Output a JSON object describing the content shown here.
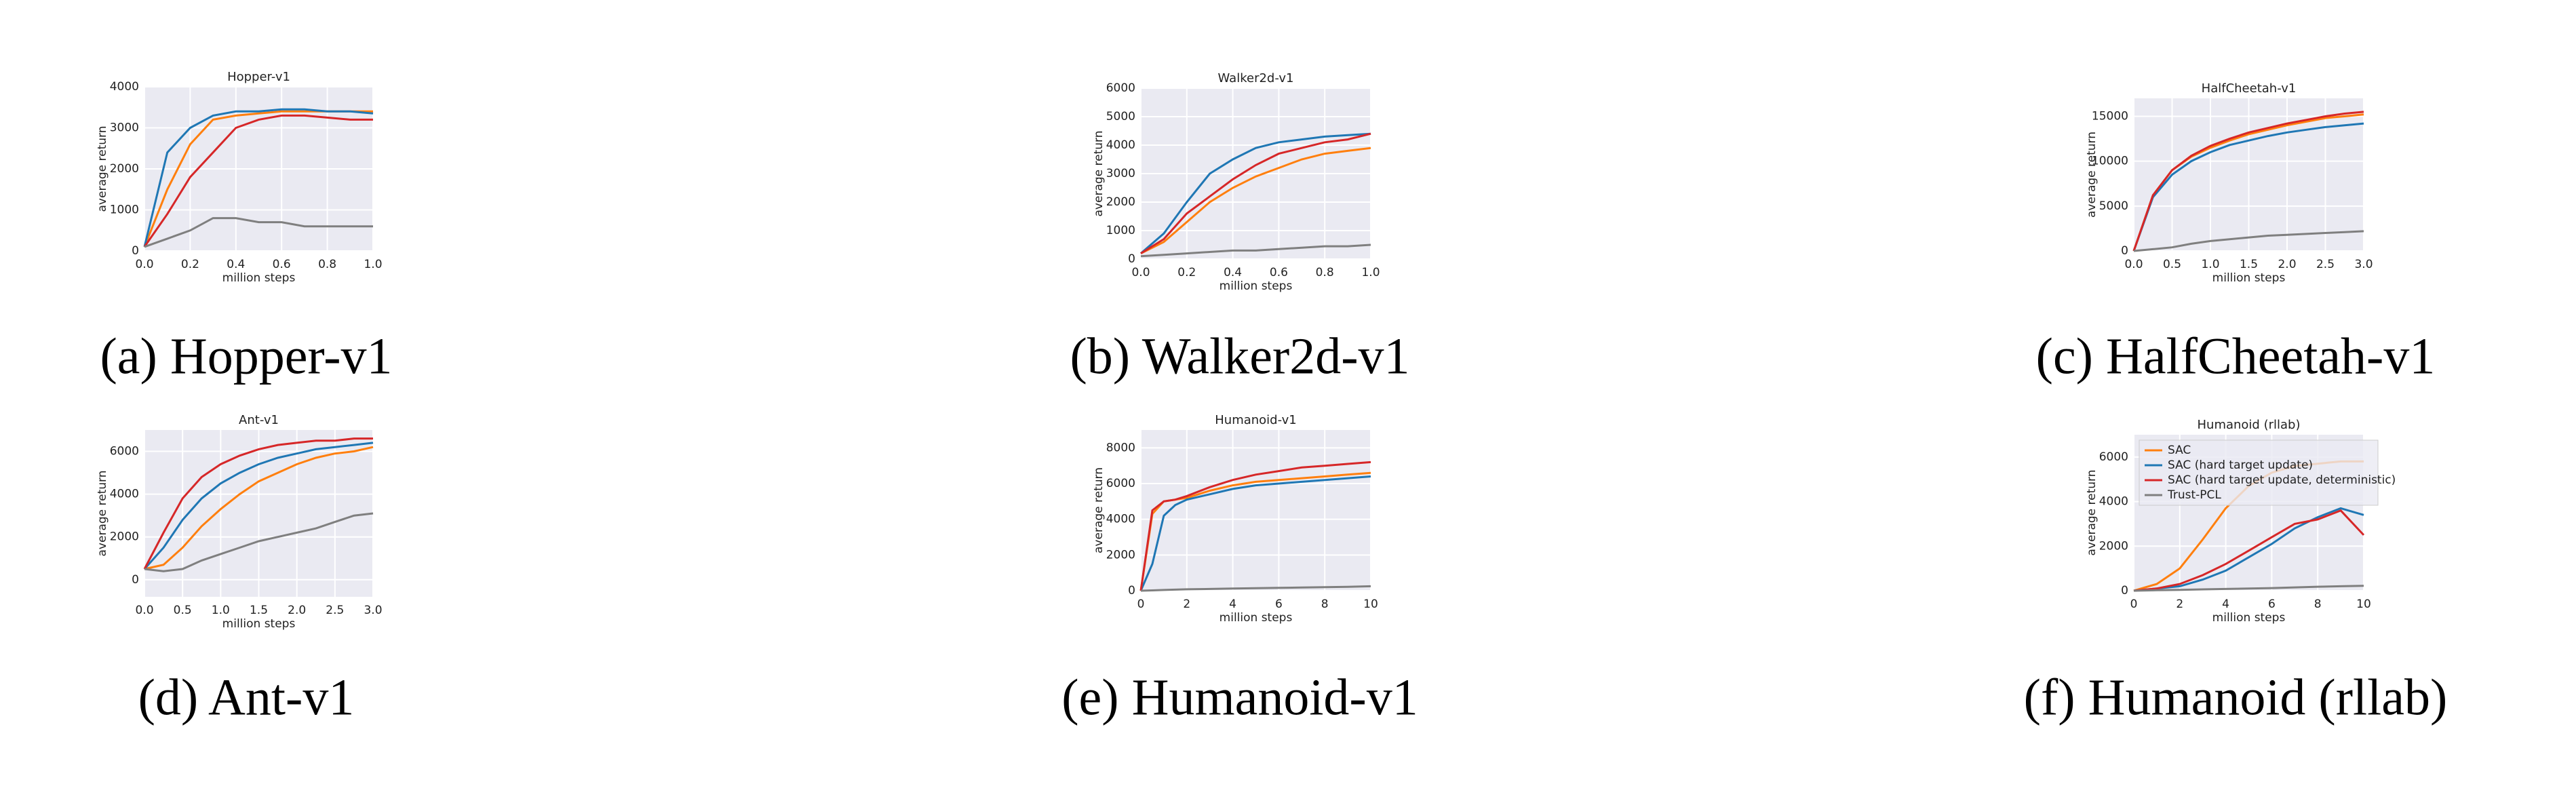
{
  "chart_data": [
    {
      "type": "line",
      "title": "Hopper-v1",
      "caption": "(a) Hopper-v1",
      "xlabel": "million steps",
      "ylabel": "average return",
      "x": [
        0,
        0.1,
        0.2,
        0.3,
        0.4,
        0.5,
        0.6,
        0.7,
        0.8,
        0.9,
        1.0
      ],
      "xlim": [
        0,
        1
      ],
      "xticks": [
        {
          "value": 0,
          "label": "0.0"
        },
        0.2,
        0.4,
        0.6,
        0.8,
        {
          "value": 1,
          "label": "1.0"
        }
      ],
      "ylim": [
        0,
        4000
      ],
      "yticks": [
        0,
        1000,
        2000,
        3000,
        4000
      ],
      "grid": true,
      "series": [
        {
          "color": "#ff7f0e",
          "values": [
            100,
            1500,
            2600,
            3200,
            3300,
            3350,
            3400,
            3400,
            3400,
            3400,
            3400
          ]
        },
        {
          "color": "#1f77b4",
          "values": [
            100,
            2400,
            3000,
            3300,
            3400,
            3400,
            3450,
            3450,
            3400,
            3400,
            3350
          ]
        },
        {
          "color": "#d62728",
          "values": [
            100,
            900,
            1800,
            2400,
            3000,
            3200,
            3300,
            3300,
            3250,
            3200,
            3200
          ]
        },
        {
          "color": "#7f7f7f",
          "values": [
            100,
            300,
            500,
            800,
            800,
            700,
            700,
            600,
            600,
            600,
            600
          ]
        }
      ]
    },
    {
      "type": "line",
      "title": "Walker2d-v1",
      "caption": "(b) Walker2d-v1",
      "xlabel": "million steps",
      "ylabel": "average return",
      "x": [
        0,
        0.1,
        0.2,
        0.3,
        0.4,
        0.5,
        0.6,
        0.7,
        0.8,
        0.9,
        1.0
      ],
      "xlim": [
        0,
        1
      ],
      "xticks": [
        {
          "value": 0,
          "label": "0.0"
        },
        0.2,
        0.4,
        0.6,
        0.8,
        {
          "value": 1,
          "label": "1.0"
        }
      ],
      "ylim": [
        0,
        6000
      ],
      "yticks": [
        0,
        1000,
        2000,
        3000,
        4000,
        5000,
        6000
      ],
      "grid": true,
      "series": [
        {
          "color": "#ff7f0e",
          "values": [
            200,
            600,
            1300,
            2000,
            2500,
            2900,
            3200,
            3500,
            3700,
            3800,
            3900
          ]
        },
        {
          "color": "#1f77b4",
          "values": [
            200,
            900,
            2000,
            3000,
            3500,
            3900,
            4100,
            4200,
            4300,
            4350,
            4400
          ]
        },
        {
          "color": "#d62728",
          "values": [
            200,
            700,
            1600,
            2200,
            2800,
            3300,
            3700,
            3900,
            4100,
            4200,
            4400
          ]
        },
        {
          "color": "#7f7f7f",
          "values": [
            100,
            150,
            200,
            250,
            300,
            300,
            350,
            400,
            450,
            450,
            500
          ]
        }
      ]
    },
    {
      "type": "line",
      "title": "HalfCheetah-v1",
      "caption": "(c) HalfCheetah-v1",
      "xlabel": "million steps",
      "ylabel": "average return",
      "x": [
        0,
        0.25,
        0.5,
        0.75,
        1.0,
        1.25,
        1.5,
        1.75,
        2.0,
        2.25,
        2.5,
        2.75,
        3.0
      ],
      "xlim": [
        0,
        3
      ],
      "xticks": [
        {
          "value": 0,
          "label": "0.0"
        },
        0.5,
        {
          "value": 1,
          "label": "1.0"
        },
        1.5,
        {
          "value": 2,
          "label": "2.0"
        },
        2.5,
        {
          "value": 3,
          "label": "3.0"
        }
      ],
      "ylim": [
        0,
        17000
      ],
      "yticks": [
        0,
        5000,
        10000,
        15000
      ],
      "grid": true,
      "series": [
        {
          "color": "#ff7f0e",
          "values": [
            0,
            6200,
            9000,
            10500,
            11500,
            12300,
            13000,
            13500,
            14000,
            14400,
            14800,
            15000,
            15200
          ]
        },
        {
          "color": "#1f77b4",
          "values": [
            0,
            6000,
            8500,
            10000,
            11000,
            11800,
            12300,
            12800,
            13200,
            13500,
            13800,
            14000,
            14200
          ]
        },
        {
          "color": "#d62728",
          "values": [
            0,
            6200,
            9000,
            10600,
            11700,
            12500,
            13200,
            13700,
            14200,
            14600,
            15000,
            15300,
            15500
          ]
        },
        {
          "color": "#7f7f7f",
          "values": [
            0,
            200,
            400,
            800,
            1100,
            1300,
            1500,
            1700,
            1800,
            1900,
            2000,
            2100,
            2200
          ]
        }
      ]
    },
    {
      "type": "line",
      "title": "Ant-v1",
      "caption": "(d) Ant-v1",
      "xlabel": "million steps",
      "ylabel": "average return",
      "x": [
        0,
        0.25,
        0.5,
        0.75,
        1.0,
        1.25,
        1.5,
        1.75,
        2.0,
        2.25,
        2.5,
        2.75,
        3.0
      ],
      "xlim": [
        0,
        3
      ],
      "xticks": [
        {
          "value": 0,
          "label": "0.0"
        },
        0.5,
        {
          "value": 1,
          "label": "1.0"
        },
        1.5,
        {
          "value": 2,
          "label": "2.0"
        },
        2.5,
        {
          "value": 3,
          "label": "3.0"
        }
      ],
      "ylim": [
        -800,
        7000
      ],
      "yticks": [
        0,
        2000,
        4000,
        6000
      ],
      "grid": true,
      "series": [
        {
          "color": "#ff7f0e",
          "values": [
            500,
            700,
            1500,
            2500,
            3300,
            4000,
            4600,
            5000,
            5400,
            5700,
            5900,
            6000,
            6200
          ]
        },
        {
          "color": "#1f77b4",
          "values": [
            500,
            1500,
            2800,
            3800,
            4500,
            5000,
            5400,
            5700,
            5900,
            6100,
            6200,
            6300,
            6400
          ]
        },
        {
          "color": "#d62728",
          "values": [
            500,
            2200,
            3800,
            4800,
            5400,
            5800,
            6100,
            6300,
            6400,
            6500,
            6500,
            6600,
            6600
          ]
        },
        {
          "color": "#7f7f7f",
          "values": [
            500,
            400,
            500,
            900,
            1200,
            1500,
            1800,
            2000,
            2200,
            2400,
            2700,
            3000,
            3100
          ]
        }
      ]
    },
    {
      "type": "line",
      "title": "Humanoid-v1",
      "caption": "(e) Humanoid-v1",
      "xlabel": "million steps",
      "ylabel": "average return",
      "x": [
        0,
        0.5,
        1,
        1.5,
        2,
        3,
        4,
        5,
        6,
        7,
        8,
        9,
        10
      ],
      "xlim": [
        0,
        10
      ],
      "xticks": [
        0,
        2,
        4,
        6,
        8,
        10
      ],
      "ylim": [
        0,
        9000
      ],
      "yticks": [
        0,
        2000,
        4000,
        6000,
        8000
      ],
      "grid": true,
      "series": [
        {
          "color": "#ff7f0e",
          "values": [
            0,
            4300,
            5000,
            5100,
            5200,
            5600,
            5900,
            6100,
            6200,
            6300,
            6400,
            6500,
            6600
          ]
        },
        {
          "color": "#1f77b4",
          "values": [
            0,
            1500,
            4200,
            4800,
            5100,
            5400,
            5700,
            5900,
            6000,
            6100,
            6200,
            6300,
            6400
          ]
        },
        {
          "color": "#d62728",
          "values": [
            0,
            4500,
            5000,
            5100,
            5300,
            5800,
            6200,
            6500,
            6700,
            6900,
            7000,
            7100,
            7200
          ]
        },
        {
          "color": "#7f7f7f",
          "values": [
            0,
            20,
            40,
            60,
            80,
            100,
            120,
            140,
            160,
            180,
            200,
            220,
            250
          ]
        }
      ]
    },
    {
      "type": "line",
      "title": "Humanoid (rllab)",
      "caption": "(f) Humanoid (rllab)",
      "xlabel": "million steps",
      "ylabel": "average return",
      "x": [
        0,
        1,
        2,
        3,
        4,
        5,
        6,
        7,
        8,
        9,
        10
      ],
      "xlim": [
        0,
        10
      ],
      "xticks": [
        0,
        2,
        4,
        6,
        8,
        10
      ],
      "ylim": [
        0,
        7000
      ],
      "yticks": [
        0,
        2000,
        4000,
        6000
      ],
      "grid": true,
      "legend": "upper left",
      "series": [
        {
          "name": "SAC",
          "color": "#ff7f0e",
          "values": [
            0,
            300,
            1000,
            2300,
            3700,
            4700,
            5300,
            5600,
            5700,
            5800,
            5800
          ]
        },
        {
          "name": "SAC (hard target update)",
          "color": "#1f77b4",
          "values": [
            0,
            100,
            200,
            500,
            900,
            1500,
            2100,
            2800,
            3300,
            3700,
            3400
          ]
        },
        {
          "name": "SAC (hard target update, deterministic)",
          "color": "#d62728",
          "values": [
            0,
            100,
            300,
            700,
            1200,
            1800,
            2400,
            3000,
            3200,
            3600,
            2500
          ]
        },
        {
          "name": "Trust-PCL",
          "color": "#7f7f7f",
          "values": [
            0,
            20,
            40,
            60,
            80,
            100,
            120,
            150,
            180,
            200,
            220
          ]
        }
      ]
    }
  ]
}
